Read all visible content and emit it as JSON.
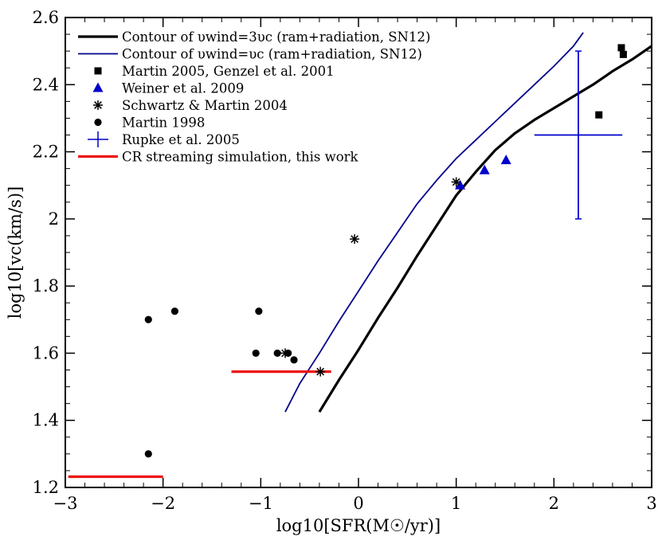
{
  "chart_data": {
    "type": "scatter",
    "xlabel": "log10[SFR(M☉/yr)]",
    "ylabel": "log10[vc(km/s)]",
    "xlim": [
      -3,
      3
    ],
    "ylim": [
      1.2,
      2.6
    ],
    "x_ticks": [
      -3,
      -2,
      -1,
      0,
      1,
      2,
      3
    ],
    "x_tick_labels": [
      "−3",
      "−2",
      "−1",
      "0",
      "1",
      "2",
      "3"
    ],
    "y_ticks": [
      1.2,
      1.4,
      1.6,
      1.8,
      2.0,
      2.2,
      2.4,
      2.6
    ],
    "y_tick_labels": [
      "1.2",
      "1.4",
      "1.6",
      "1.8",
      "2",
      "2.2",
      "2.4",
      "2.6"
    ],
    "legend_position": "top-left",
    "colors": {
      "black": "#000000",
      "blue": "#0000cc",
      "navy": "#00008b",
      "red": "#ee1111"
    },
    "series": [
      {
        "name": "Contour of υwind=3υc (ram+radiation, SN12)",
        "kind": "line",
        "color": "#000000",
        "width": "thick",
        "x": [
          -0.4,
          -0.2,
          0.0,
          0.2,
          0.4,
          0.6,
          0.8,
          1.0,
          1.2,
          1.4,
          1.6,
          1.8,
          2.0,
          2.2,
          2.4,
          2.6,
          2.8,
          3.0
        ],
        "y": [
          1.425,
          1.52,
          1.61,
          1.705,
          1.795,
          1.89,
          1.98,
          2.07,
          2.14,
          2.205,
          2.255,
          2.295,
          2.33,
          2.365,
          2.4,
          2.44,
          2.475,
          2.515
        ]
      },
      {
        "name": "Contour of υwind=υc (ram+radiation, SN12)",
        "kind": "line",
        "color": "#00008b",
        "width": "thin",
        "x": [
          -0.75,
          -0.6,
          -0.4,
          -0.2,
          0.0,
          0.2,
          0.4,
          0.6,
          0.8,
          1.0,
          1.2,
          1.4,
          1.6,
          1.8,
          2.0,
          2.2,
          2.3
        ],
        "y": [
          1.425,
          1.51,
          1.6,
          1.695,
          1.785,
          1.875,
          1.96,
          2.045,
          2.115,
          2.18,
          2.235,
          2.29,
          2.345,
          2.4,
          2.455,
          2.515,
          2.555
        ]
      },
      {
        "name": "Martin 2005, Genzel et al. 2001",
        "kind": "marker",
        "marker": "square",
        "color": "#000000",
        "x": [
          2.46,
          2.69,
          2.71
        ],
        "y": [
          2.31,
          2.51,
          2.49
        ]
      },
      {
        "name": "Weiner et al. 2009",
        "kind": "marker",
        "marker": "triangle",
        "color": "#0000cc",
        "x": [
          1.04,
          1.29,
          1.51
        ],
        "y": [
          2.1,
          2.145,
          2.175
        ]
      },
      {
        "name": "Schwartz & Martin 2004",
        "kind": "marker",
        "marker": "star",
        "color": "#000000",
        "x": [
          -0.04,
          1.0,
          -0.39,
          -0.75
        ],
        "y": [
          1.94,
          2.11,
          1.545,
          1.6
        ]
      },
      {
        "name": "Martin 1998",
        "kind": "marker",
        "marker": "circle",
        "color": "#000000",
        "x": [
          -2.15,
          -1.88,
          -2.15,
          -1.02,
          -1.05,
          -0.83,
          -0.72,
          -0.66
        ],
        "y": [
          1.7,
          1.725,
          1.3,
          1.725,
          1.6,
          1.6,
          1.6,
          1.58
        ]
      },
      {
        "name": "Rupke et al. 2005",
        "kind": "errorbar",
        "color": "#0000cc",
        "x": [
          2.25
        ],
        "y": [
          2.25
        ],
        "xerr": [
          0.45
        ],
        "yerr_low": [
          0.25
        ],
        "yerr_high": [
          0.25
        ]
      },
      {
        "name": "CR streaming simulation, this work",
        "kind": "hsegments",
        "color": "#ee1111",
        "segments": [
          {
            "x0": -2.97,
            "x1": -2.0,
            "y": 1.232
          },
          {
            "x0": -1.3,
            "x1": -0.28,
            "y": 1.545
          }
        ]
      }
    ]
  }
}
